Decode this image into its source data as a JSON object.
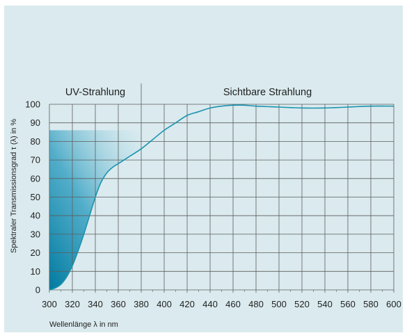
{
  "chart_data": {
    "type": "line",
    "title": "",
    "xlabel": "Wellenlänge λ in nm",
    "ylabel": "Spektraler Transmissionsgrad τ (λ) in %",
    "xlim": [
      300,
      600
    ],
    "ylim": [
      0,
      100
    ],
    "x_ticks": [
      "300",
      "320",
      "340",
      "360",
      "380",
      "400",
      "420",
      "440",
      "460",
      "480",
      "500",
      "520",
      "540",
      "560",
      "580",
      "600"
    ],
    "y_ticks": [
      "0",
      "10",
      "20",
      "30",
      "40",
      "50",
      "60",
      "70",
      "80",
      "90",
      "100"
    ],
    "grid": true,
    "regions": [
      {
        "label": "UV-Strahlung",
        "x_from": 300,
        "x_to": 380
      },
      {
        "label": "Sichtbare Strahlung",
        "x_from": 380,
        "x_to": 600
      }
    ],
    "series": [
      {
        "x": [
          300,
          305,
          310,
          315,
          320,
          325,
          330,
          335,
          340,
          345,
          350,
          355,
          360,
          370,
          380,
          390,
          400,
          410,
          420,
          430,
          440,
          450,
          460,
          470,
          480,
          500,
          520,
          540,
          560,
          580,
          600
        ],
        "values": [
          0,
          1,
          3,
          7,
          13,
          21,
          30,
          40,
          50,
          58,
          63,
          66,
          68,
          72,
          76,
          81,
          86,
          90,
          94,
          96,
          98,
          99,
          99.5,
          99.5,
          99,
          98.5,
          98,
          98,
          98.5,
          99,
          99
        ],
        "color": "#1a93ae"
      }
    ],
    "colors": {
      "background": "#daeaee",
      "grid": "#5c5c5c",
      "curve": "#1a93ae",
      "fill_dark": "#0082a6",
      "fill_light": "#cfe8ef"
    }
  }
}
